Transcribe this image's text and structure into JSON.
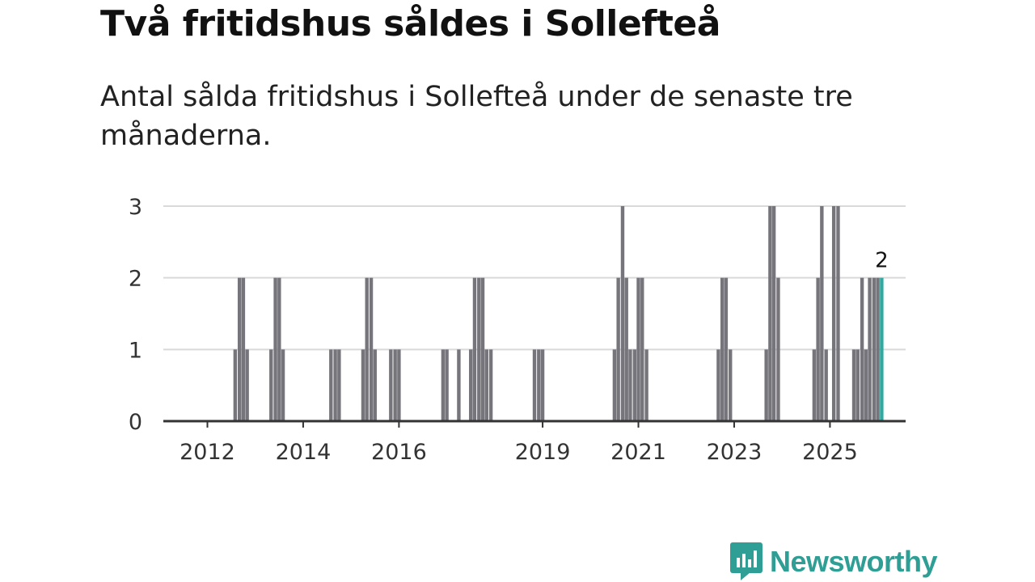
{
  "title": "Två fritidshus såldes i Sollefteå",
  "subtitle": "Antal sålda fritidshus i Sollefteå under de senaste tre månaderna.",
  "brand": {
    "name": "Newsworthy",
    "color": "#2f9e94"
  },
  "chart_data": {
    "type": "bar",
    "title": "Två fritidshus såldes i Sollefteå",
    "xlabel": "",
    "ylabel": "",
    "ylim": [
      0,
      3
    ],
    "yticks": [
      0,
      1,
      2,
      3
    ],
    "xticks": [
      {
        "label": "2012",
        "x": 2012.0
      },
      {
        "label": "2014",
        "x": 2014.0
      },
      {
        "label": "2016",
        "x": 2016.0
      },
      {
        "label": "2019",
        "x": 2019.0
      },
      {
        "label": "2021",
        "x": 2021.0
      },
      {
        "label": "2023",
        "x": 2023.0
      },
      {
        "label": "2025",
        "x": 2025.0
      }
    ],
    "xlim": [
      2011.08,
      2026.58
    ],
    "bar_color": "#76757b",
    "highlight_color": "#2eaaa0",
    "highlight_label": "2",
    "series": [
      {
        "name": "Antal sålda fritidshus",
        "points": [
          {
            "x": 2012.58,
            "v": 1
          },
          {
            "x": 2012.67,
            "v": 2
          },
          {
            "x": 2012.75,
            "v": 2
          },
          {
            "x": 2012.83,
            "v": 1
          },
          {
            "x": 2013.33,
            "v": 1
          },
          {
            "x": 2013.42,
            "v": 2
          },
          {
            "x": 2013.5,
            "v": 2
          },
          {
            "x": 2013.58,
            "v": 1
          },
          {
            "x": 2014.58,
            "v": 1
          },
          {
            "x": 2014.67,
            "v": 1
          },
          {
            "x": 2014.75,
            "v": 1
          },
          {
            "x": 2015.25,
            "v": 1
          },
          {
            "x": 2015.33,
            "v": 2
          },
          {
            "x": 2015.42,
            "v": 2
          },
          {
            "x": 2015.5,
            "v": 1
          },
          {
            "x": 2015.83,
            "v": 1
          },
          {
            "x": 2015.92,
            "v": 1
          },
          {
            "x": 2016.0,
            "v": 1
          },
          {
            "x": 2016.92,
            "v": 1
          },
          {
            "x": 2017.0,
            "v": 1
          },
          {
            "x": 2017.25,
            "v": 1
          },
          {
            "x": 2017.5,
            "v": 1
          },
          {
            "x": 2017.58,
            "v": 2
          },
          {
            "x": 2017.67,
            "v": 2
          },
          {
            "x": 2017.75,
            "v": 2
          },
          {
            "x": 2017.83,
            "v": 1
          },
          {
            "x": 2017.92,
            "v": 1
          },
          {
            "x": 2018.83,
            "v": 1
          },
          {
            "x": 2018.92,
            "v": 1
          },
          {
            "x": 2019.0,
            "v": 1
          },
          {
            "x": 2020.5,
            "v": 1
          },
          {
            "x": 2020.58,
            "v": 2
          },
          {
            "x": 2020.67,
            "v": 3
          },
          {
            "x": 2020.75,
            "v": 2
          },
          {
            "x": 2020.83,
            "v": 1
          },
          {
            "x": 2020.92,
            "v": 1
          },
          {
            "x": 2021.0,
            "v": 2
          },
          {
            "x": 2021.08,
            "v": 2
          },
          {
            "x": 2021.17,
            "v": 1
          },
          {
            "x": 2022.67,
            "v": 1
          },
          {
            "x": 2022.75,
            "v": 2
          },
          {
            "x": 2022.83,
            "v": 2
          },
          {
            "x": 2022.92,
            "v": 1
          },
          {
            "x": 2023.67,
            "v": 1
          },
          {
            "x": 2023.75,
            "v": 3
          },
          {
            "x": 2023.83,
            "v": 3
          },
          {
            "x": 2023.92,
            "v": 2
          },
          {
            "x": 2024.67,
            "v": 1
          },
          {
            "x": 2024.75,
            "v": 2
          },
          {
            "x": 2024.83,
            "v": 3
          },
          {
            "x": 2024.92,
            "v": 1
          },
          {
            "x": 2025.08,
            "v": 3
          },
          {
            "x": 2025.17,
            "v": 3
          },
          {
            "x": 2025.5,
            "v": 1
          },
          {
            "x": 2025.58,
            "v": 1
          },
          {
            "x": 2025.67,
            "v": 2
          },
          {
            "x": 2025.75,
            "v": 1
          },
          {
            "x": 2025.83,
            "v": 2
          },
          {
            "x": 2025.92,
            "v": 2
          },
          {
            "x": 2026.0,
            "v": 2
          },
          {
            "x": 2026.08,
            "v": 2
          }
        ]
      }
    ]
  }
}
